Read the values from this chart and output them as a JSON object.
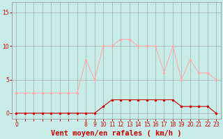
{
  "background_color": "#c8ede8",
  "grid_color": "#999999",
  "xlabel": "Vent moyen/en rafales ( km/h )",
  "xlabel_color": "#cc0000",
  "xlabel_fontsize": 7.5,
  "yticks": [
    0,
    5,
    10,
    15
  ],
  "ylim": [
    -0.8,
    16.5
  ],
  "xlim": [
    -0.5,
    23.5
  ],
  "hours": [
    0,
    1,
    2,
    3,
    4,
    5,
    6,
    7,
    8,
    9,
    10,
    11,
    12,
    13,
    14,
    15,
    16,
    17,
    18,
    19,
    20,
    21,
    22,
    23
  ],
  "vent_moyen": [
    0,
    0,
    0,
    0,
    0,
    0,
    0,
    0,
    0,
    0,
    1,
    2,
    2,
    2,
    2,
    2,
    2,
    2,
    2,
    1,
    1,
    1,
    1,
    0
  ],
  "rafales": [
    3,
    3,
    3,
    3,
    3,
    3,
    3,
    3,
    8,
    5,
    10,
    10,
    11,
    11,
    10,
    10,
    10,
    6,
    10,
    5,
    8,
    6,
    6,
    5
  ],
  "vent_moyen_color": "#cc0000",
  "rafales_color": "#ffaaaa",
  "vent_moyen_lw": 0.8,
  "rafales_lw": 0.8,
  "marker_size": 1.5,
  "tick_color": "#cc0000",
  "tick_fontsize": 5.5,
  "xtick_labels": [
    "0",
    "",
    "",
    "",
    "",
    "",
    "",
    "",
    "8",
    "9",
    "10",
    "11",
    "12",
    "13",
    "14",
    "15",
    "16",
    "17",
    "18",
    "19",
    "20",
    "21",
    "22",
    "23"
  ]
}
